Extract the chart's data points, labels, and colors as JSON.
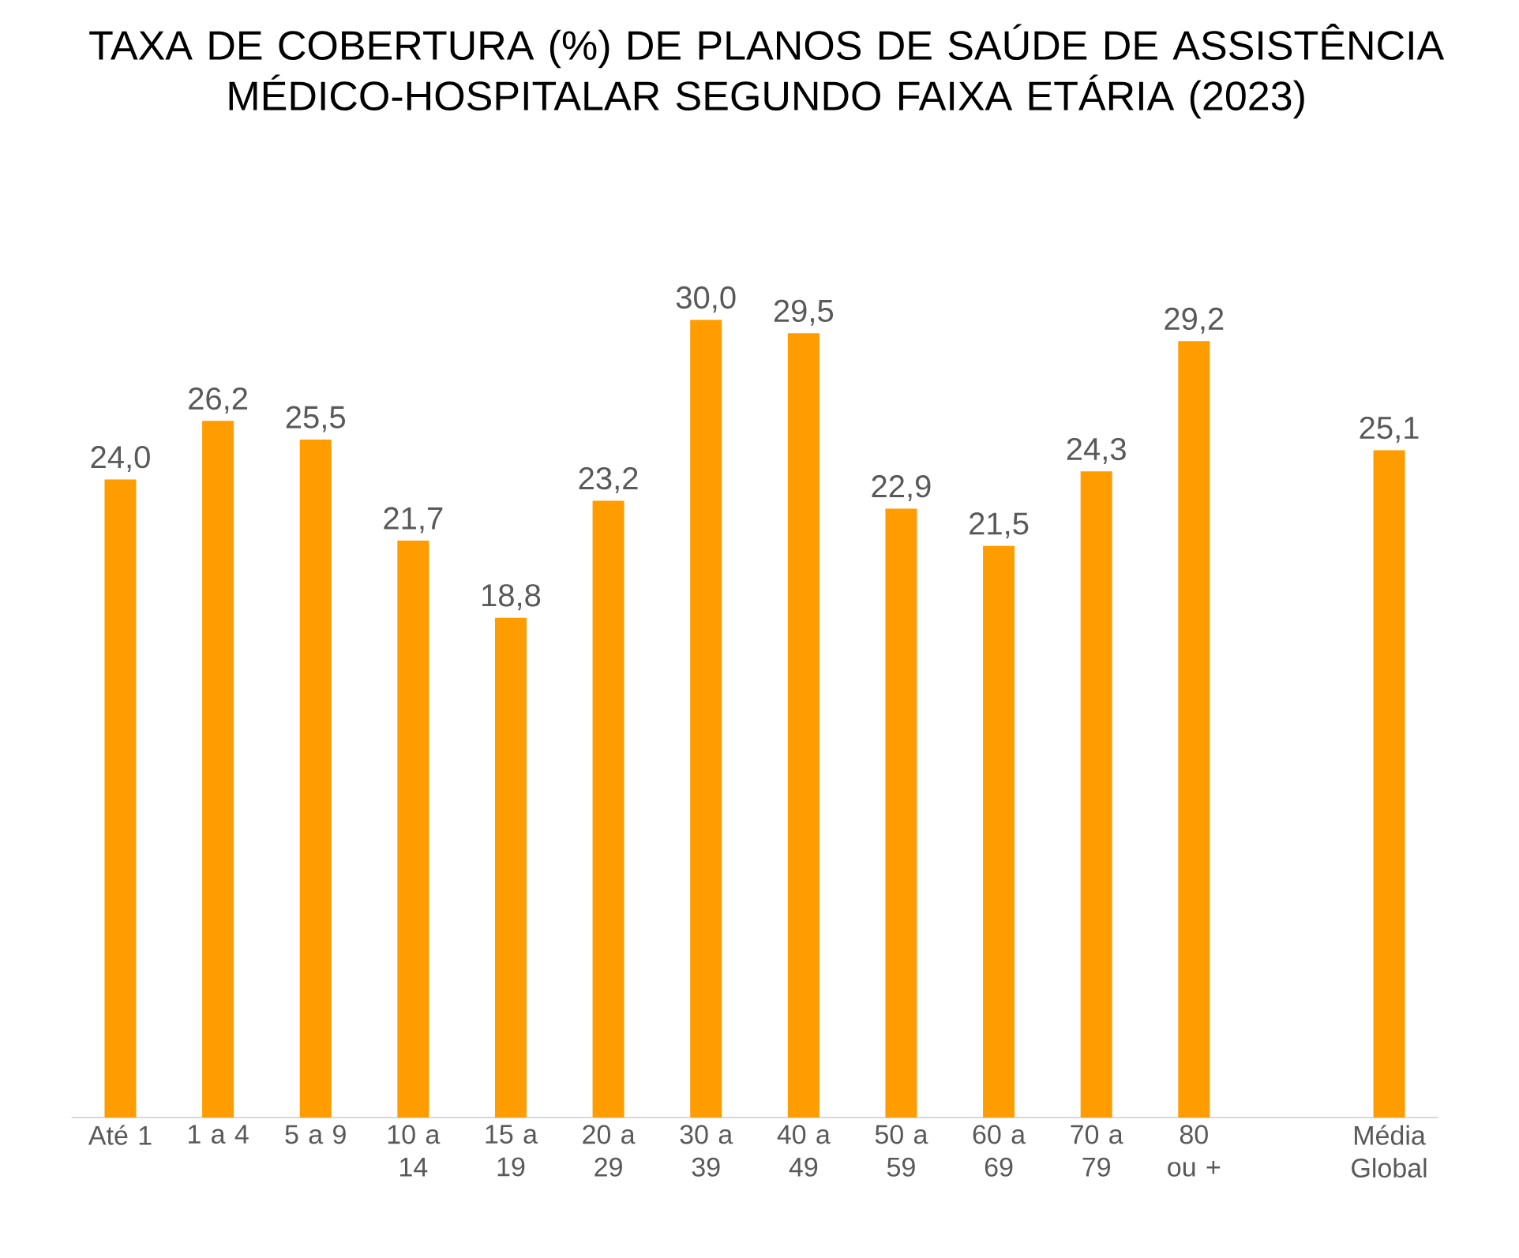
{
  "chart_data": {
    "type": "bar",
    "title": "TAXA DE COBERTURA (%) DE PLANOS DE SAÚDE DE ASSISTÊNCIA MÉDICO-HOSPITALAR SEGUNDO FAIXA ETÁRIA (2023)",
    "categories": [
      "Até 1",
      "1 a 4",
      "5 a 9",
      "10 a 14",
      "15 a 19",
      "20 a 29",
      "30 a 39",
      "40 a 49",
      "50 a 59",
      "60 a 69",
      "70 a 79",
      "80 ou +",
      null,
      "Média Global"
    ],
    "values": [
      24.0,
      26.2,
      25.5,
      21.7,
      18.8,
      23.2,
      30.0,
      29.5,
      22.9,
      21.5,
      24.3,
      29.2,
      null,
      25.1
    ],
    "value_labels": [
      "24,0",
      "26,2",
      "25,5",
      "21,7",
      "18,8",
      "23,2",
      "30,0",
      "29,5",
      "22,9",
      "21,5",
      "24,3",
      "29,2",
      null,
      "25,1"
    ],
    "color": "#ff9c00",
    "tick_labels": "x"
  }
}
